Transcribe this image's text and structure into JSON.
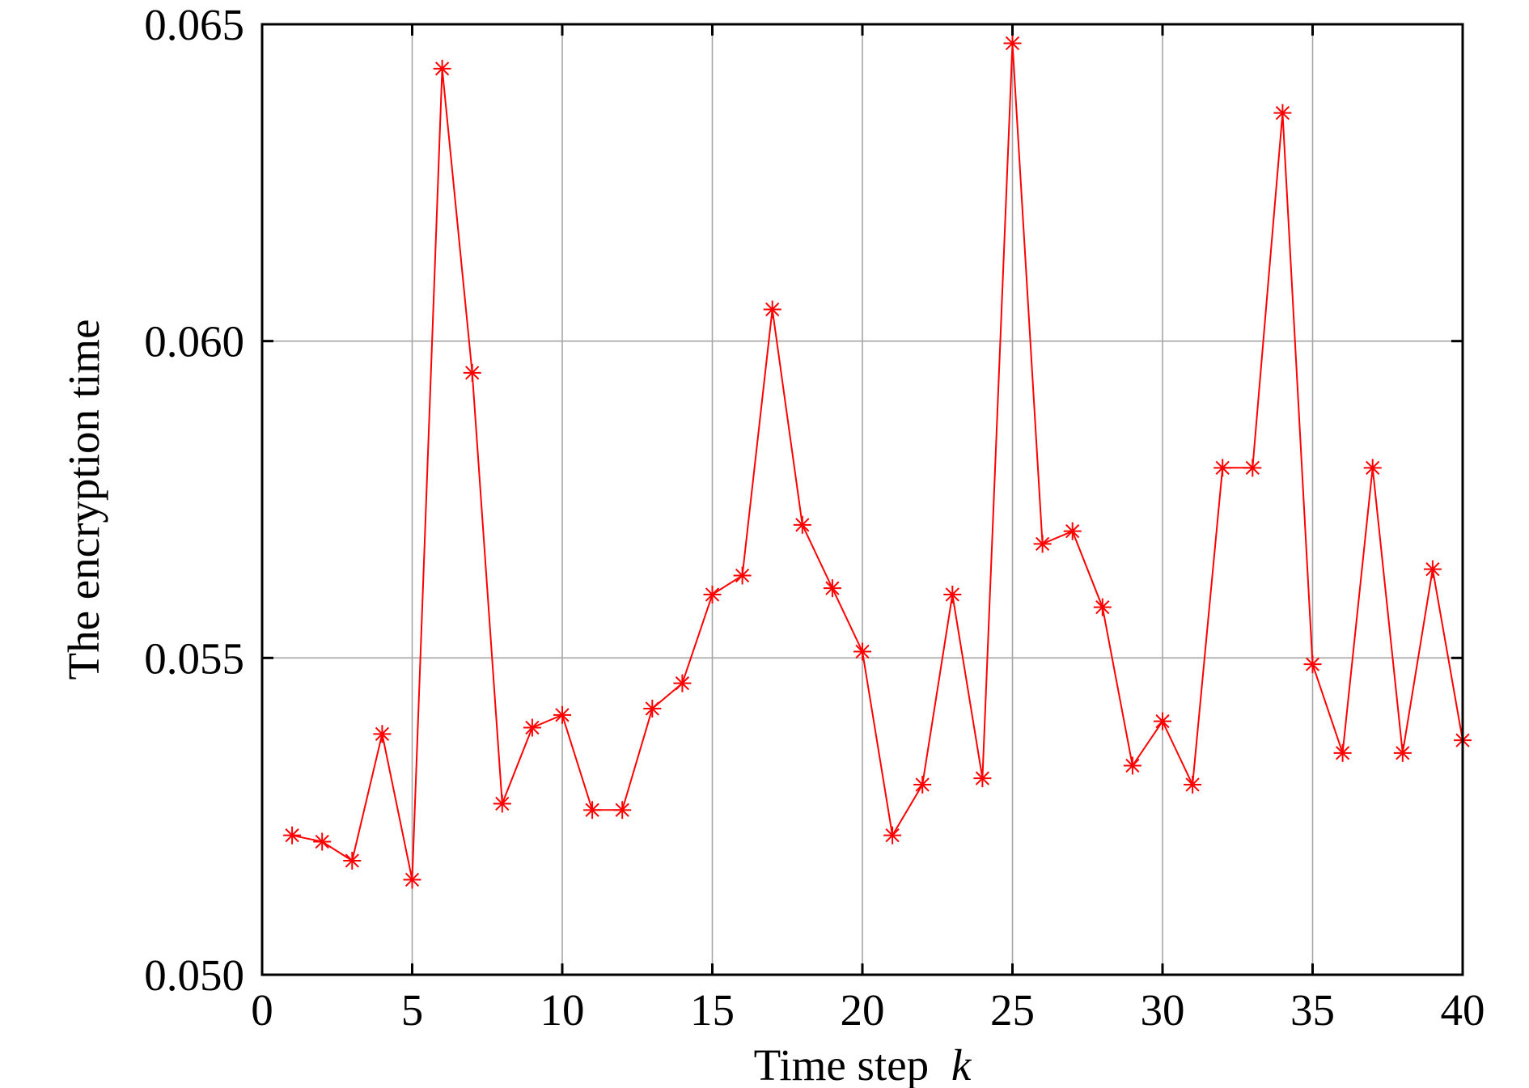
{
  "chart_data": {
    "type": "line",
    "xlabel": "Time step",
    "xlabel_var": "k",
    "ylabel": "The encryption time",
    "xlim": [
      0,
      40
    ],
    "ylim": [
      0.05,
      0.065
    ],
    "xticks": [
      0,
      5,
      10,
      15,
      20,
      25,
      30,
      35,
      40
    ],
    "yticks": [
      0.05,
      0.055,
      0.06,
      0.065
    ],
    "xtick_labels": [
      "0",
      "5",
      "10",
      "15",
      "20",
      "25",
      "30",
      "35",
      "40"
    ],
    "ytick_labels": [
      "0.050",
      "0.055",
      "0.060",
      "0.065"
    ],
    "grid": true,
    "series": [
      {
        "color": "#ff0000",
        "marker": "asterisk",
        "x": [
          1,
          2,
          3,
          4,
          5,
          6,
          7,
          8,
          9,
          10,
          11,
          12,
          13,
          14,
          15,
          16,
          17,
          18,
          19,
          20,
          21,
          22,
          23,
          24,
          25,
          26,
          27,
          28,
          29,
          30,
          31,
          32,
          33,
          34,
          35,
          36,
          37,
          38,
          39,
          40
        ],
        "y": [
          0.0522,
          0.0521,
          0.0518,
          0.0538,
          0.0515,
          0.0643,
          0.0595,
          0.0527,
          0.0539,
          0.0541,
          0.0526,
          0.0526,
          0.0542,
          0.0546,
          0.056,
          0.0563,
          0.0605,
          0.0571,
          0.0561,
          0.0551,
          0.0522,
          0.053,
          0.056,
          0.0531,
          0.0647,
          0.0568,
          0.057,
          0.0558,
          0.0533,
          0.054,
          0.053,
          0.058,
          0.058,
          0.0636,
          0.0549,
          0.0535,
          0.058,
          0.0535,
          0.0564,
          0.0537
        ]
      }
    ]
  }
}
